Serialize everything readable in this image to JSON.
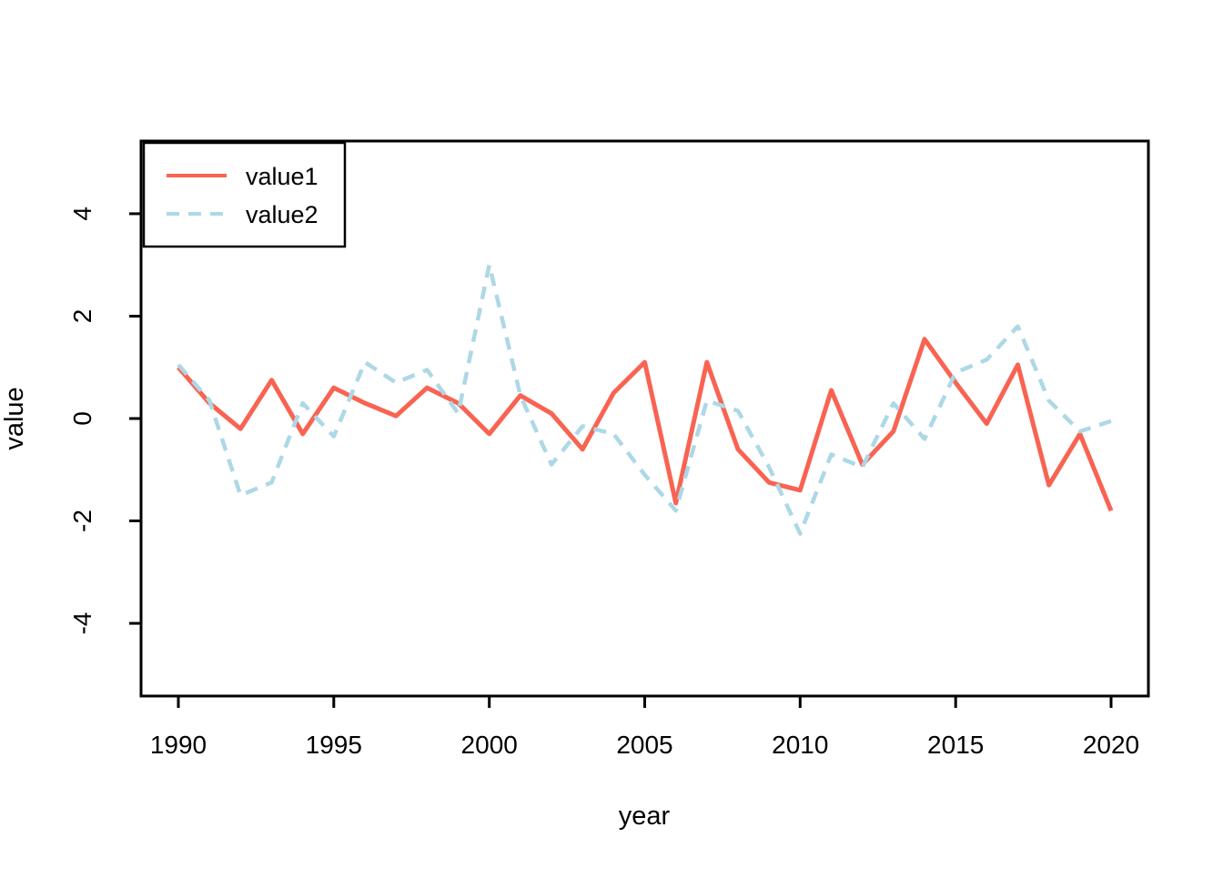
{
  "chart_data": {
    "type": "line",
    "title": "",
    "xlabel": "year",
    "ylabel": "value",
    "x": [
      1990,
      1991,
      1992,
      1993,
      1994,
      1995,
      1996,
      1997,
      1998,
      1999,
      2000,
      2001,
      2002,
      2003,
      2004,
      2005,
      2006,
      2007,
      2008,
      2009,
      2010,
      2011,
      2012,
      2013,
      2014,
      2015,
      2016,
      2017,
      2018,
      2019,
      2020
    ],
    "series": [
      {
        "name": "value1",
        "color": "#f96351",
        "line_style": "solid",
        "line_width": 5,
        "values": [
          1.0,
          0.3,
          -0.2,
          0.75,
          -0.3,
          0.6,
          0.3,
          0.05,
          0.6,
          0.3,
          -0.3,
          0.45,
          0.1,
          -0.6,
          0.5,
          1.1,
          -1.65,
          1.1,
          -0.6,
          -1.25,
          -1.4,
          0.55,
          -0.9,
          -0.25,
          1.55,
          0.7,
          -0.1,
          1.05,
          -1.3,
          -0.3,
          -1.8
        ]
      },
      {
        "name": "value2",
        "color": "#add8e6",
        "line_style": "dashed",
        "line_width": 4.5,
        "values": [
          1.05,
          0.35,
          -1.5,
          -1.25,
          0.3,
          -0.35,
          1.1,
          0.7,
          0.95,
          0.1,
          3.0,
          0.45,
          -0.9,
          -0.15,
          -0.3,
          -1.1,
          -1.8,
          0.35,
          0.15,
          -0.95,
          -2.25,
          -0.7,
          -0.95,
          0.3,
          -0.4,
          0.9,
          1.15,
          1.8,
          0.35,
          -0.25,
          -0.05
        ]
      }
    ],
    "x_ticks": [
      1990,
      1995,
      2000,
      2005,
      2010,
      2015,
      2020
    ],
    "y_ticks": [
      -4,
      -2,
      0,
      2,
      4
    ],
    "xlim": [
      1988.8,
      2021.2
    ],
    "ylim": [
      -5.42,
      5.42
    ],
    "grid": false,
    "legend": {
      "position": "top-left",
      "entries": [
        "value1",
        "value2"
      ]
    },
    "background": "#ffffff",
    "axis_color": "#000000"
  }
}
